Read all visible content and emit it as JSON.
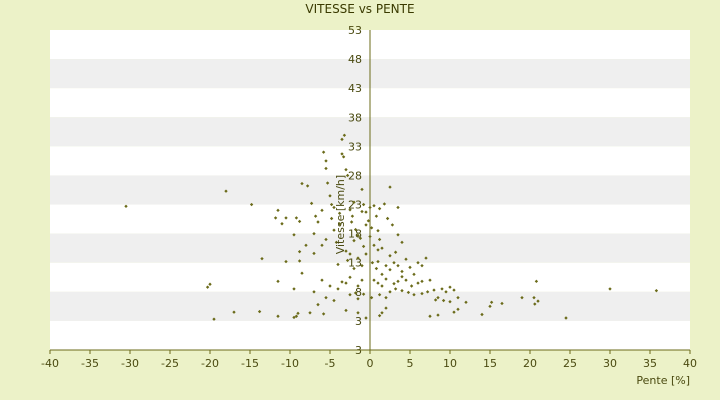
{
  "chart_data": {
    "type": "scatter",
    "title": "VITESSE vs PENTE",
    "xlabel": "Pente [%]",
    "ylabel": "Vitesse [km/h]",
    "xlim": [
      -40,
      40
    ],
    "x_ticks": [
      -40,
      -35,
      -30,
      -25,
      -20,
      -15,
      -10,
      -5,
      0,
      5,
      10,
      15,
      20,
      25,
      30,
      35,
      40
    ],
    "y_tick_labels": [
      "3",
      "3",
      "8",
      "13",
      "18",
      "23",
      "28",
      "33",
      "38",
      "43",
      "48",
      "53"
    ],
    "grid": true,
    "legend": "none",
    "colors": {
      "background": "#ecf2c8",
      "plot_band_light": "#ffffff",
      "plot_band_dark": "#efefef",
      "marker": "#6b6b1a",
      "axis": "#6b6b1a",
      "text": "#4a4a10"
    },
    "series": [
      {
        "points": [
          [
            -30.5,
            22.7
          ],
          [
            -18,
            25.3
          ],
          [
            -14.8,
            23.0
          ],
          [
            -13.5,
            13.7
          ],
          [
            -11.5,
            22.0
          ],
          [
            -11.8,
            20.7
          ],
          [
            -11,
            19.7
          ],
          [
            -10.5,
            20.7
          ],
          [
            -9.5,
            17.8
          ],
          [
            -9.2,
            20.7
          ],
          [
            -8.8,
            20.1
          ],
          [
            -8.5,
            26.6
          ],
          [
            -8.8,
            14.9
          ],
          [
            -8.8,
            13.3
          ],
          [
            -8.5,
            11.2
          ],
          [
            -7.8,
            26.2
          ],
          [
            -7.3,
            23.2
          ],
          [
            -6.8,
            21.0
          ],
          [
            -7.0,
            18.0
          ],
          [
            -7.0,
            14.6
          ],
          [
            -6.5,
            20.0
          ],
          [
            -6,
            22.0
          ],
          [
            -5.8,
            32.0
          ],
          [
            -5.5,
            30.5
          ],
          [
            -5.5,
            29.2
          ],
          [
            -5.3,
            26.7
          ],
          [
            -5,
            24.5
          ],
          [
            -4.8,
            23.0
          ],
          [
            -4.8,
            20.6
          ],
          [
            -4.5,
            22.5
          ],
          [
            -4.5,
            18.6
          ],
          [
            -4.2,
            16.5
          ],
          [
            -4.0,
            12.7
          ],
          [
            -3.8,
            21.5
          ],
          [
            -3.8,
            19.7
          ],
          [
            -3.5,
            34.2
          ],
          [
            -3.2,
            34.9
          ],
          [
            -3.3,
            31.2
          ],
          [
            -3.5,
            31.7
          ],
          [
            -3.0,
            29.0
          ],
          [
            -2.8,
            28.0
          ],
          [
            -2.5,
            22.1
          ],
          [
            -2.2,
            21.0
          ],
          [
            -2.3,
            20.0
          ],
          [
            -2.0,
            23.4
          ],
          [
            -1.8,
            18.7
          ],
          [
            -1.5,
            17.7
          ],
          [
            -1.0,
            25.6
          ],
          [
            -1.0,
            21.8
          ],
          [
            -0.8,
            23.0
          ],
          [
            -0.8,
            15.8
          ],
          [
            -0.5,
            21.7
          ],
          [
            -0.2,
            20.2
          ],
          [
            0,
            22.5
          ],
          [
            0.2,
            19.0
          ],
          [
            0.5,
            22.8
          ],
          [
            0.8,
            21.0
          ],
          [
            1.0,
            18.5
          ],
          [
            1.2,
            17.0
          ],
          [
            1.5,
            15.5
          ],
          [
            -3.0,
            15.0
          ],
          [
            -2.8,
            13.4
          ],
          [
            -2.5,
            14.5
          ],
          [
            -2.0,
            12.0
          ],
          [
            -1.5,
            13.8
          ],
          [
            -1.0,
            12.5
          ],
          [
            -0.5,
            14.5
          ],
          [
            0.3,
            13.0
          ],
          [
            0.8,
            12.0
          ],
          [
            1.0,
            13.2
          ],
          [
            1.5,
            11.0
          ],
          [
            2.0,
            12.5
          ],
          [
            2.5,
            11.8
          ],
          [
            3.0,
            13.0
          ],
          [
            3.2,
            14.8
          ],
          [
            3.5,
            12.5
          ],
          [
            4.0,
            11.5
          ],
          [
            4.0,
            10.6
          ],
          [
            4.5,
            13.6
          ],
          [
            5.0,
            12.2
          ],
          [
            5.5,
            11.0
          ],
          [
            6.0,
            13.0
          ],
          [
            6.5,
            12.5
          ],
          [
            7.0,
            13.8
          ],
          [
            2.5,
            26.0
          ],
          [
            3.5,
            22.5
          ],
          [
            1.8,
            23.1
          ],
          [
            1.2,
            22.3
          ],
          [
            2.2,
            20.6
          ],
          [
            2.8,
            19.5
          ],
          [
            3.5,
            17.8
          ],
          [
            4.0,
            16.5
          ],
          [
            -3.5,
            9.7
          ],
          [
            -3.0,
            9.5
          ],
          [
            -2.5,
            10.5
          ],
          [
            -1.5,
            9.0
          ],
          [
            -1.0,
            10.0
          ],
          [
            0.5,
            10.0
          ],
          [
            1.0,
            9.5
          ],
          [
            1.5,
            9.0
          ],
          [
            2.0,
            10.2
          ],
          [
            3.0,
            9.4
          ],
          [
            3.5,
            9.8
          ],
          [
            4.5,
            10.0
          ],
          [
            5.2,
            9.0
          ],
          [
            6.0,
            9.5
          ],
          [
            6.5,
            9.8
          ],
          [
            7.5,
            10.0
          ],
          [
            8.0,
            8.3
          ],
          [
            9.0,
            8.5
          ],
          [
            9.5,
            8.0
          ],
          [
            10.0,
            8.8
          ],
          [
            10.5,
            8.3
          ],
          [
            11.0,
            7.0
          ],
          [
            -2.5,
            7.5
          ],
          [
            -1.8,
            7.8
          ],
          [
            -1.5,
            6.8
          ],
          [
            -0.8,
            7.6
          ],
          [
            0.2,
            7.0
          ],
          [
            1.2,
            7.5
          ],
          [
            2.0,
            7.0
          ],
          [
            2.5,
            8.0
          ],
          [
            3.2,
            8.5
          ],
          [
            4.0,
            8.2
          ],
          [
            4.8,
            7.9
          ],
          [
            5.5,
            7.5
          ],
          [
            6.5,
            7.7
          ],
          [
            7.2,
            8.0
          ],
          [
            8.2,
            6.6
          ],
          [
            8.5,
            7.0
          ],
          [
            9.2,
            6.5
          ],
          [
            10.0,
            6.3
          ],
          [
            -5.5,
            7.0
          ],
          [
            -4.5,
            6.5
          ],
          [
            -4.0,
            8.5
          ],
          [
            -5.0,
            9.0
          ],
          [
            -6.0,
            10.0
          ],
          [
            -7.0,
            8.0
          ],
          [
            -9.5,
            8.5
          ],
          [
            -10.5,
            13.2
          ],
          [
            -11.5,
            9.8
          ],
          [
            -6.0,
            16.0
          ],
          [
            -5.5,
            17.0
          ],
          [
            -8.0,
            16.0
          ],
          [
            -1.5,
            4.4
          ],
          [
            -0.5,
            3.5
          ],
          [
            1.2,
            3.9
          ],
          [
            1.5,
            4.4
          ],
          [
            2.0,
            5.2
          ],
          [
            -3.0,
            4.8
          ],
          [
            -5.8,
            4.2
          ],
          [
            -6.5,
            5.8
          ],
          [
            -7.5,
            4.4
          ],
          [
            -9.5,
            3.6
          ],
          [
            -9.2,
            3.8
          ],
          [
            -9.0,
            4.3
          ],
          [
            -11.5,
            3.8
          ],
          [
            -13.8,
            4.6
          ],
          [
            -17.0,
            4.5
          ],
          [
            -19.5,
            3.3
          ],
          [
            -20.3,
            8.8
          ],
          [
            -20.0,
            9.3
          ],
          [
            12.0,
            6.2
          ],
          [
            14.0,
            4.1
          ],
          [
            15.0,
            5.5
          ],
          [
            15.2,
            6.2
          ],
          [
            16.5,
            6.0
          ],
          [
            19.0,
            7.0
          ],
          [
            20.5,
            7.0
          ],
          [
            20.8,
            9.8
          ],
          [
            20.6,
            5.9
          ],
          [
            21.0,
            6.4
          ],
          [
            24.5,
            3.5
          ],
          [
            30.0,
            8.5
          ],
          [
            35.8,
            8.2
          ],
          [
            10.5,
            4.5
          ],
          [
            8.5,
            4.0
          ],
          [
            7.5,
            3.8
          ],
          [
            11.0,
            5.0
          ],
          [
            -0.5,
            19.5
          ],
          [
            0.5,
            16.0
          ],
          [
            1.0,
            15.2
          ],
          [
            2.5,
            14.2
          ],
          [
            -1.2,
            17.2
          ],
          [
            -2.0,
            16.8
          ],
          [
            0.0,
            17.5
          ]
        ]
      }
    ]
  }
}
